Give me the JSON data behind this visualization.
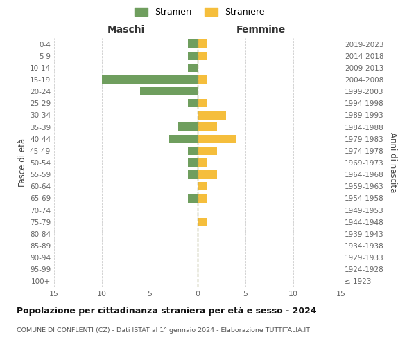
{
  "age_groups": [
    "100+",
    "95-99",
    "90-94",
    "85-89",
    "80-84",
    "75-79",
    "70-74",
    "65-69",
    "60-64",
    "55-59",
    "50-54",
    "45-49",
    "40-44",
    "35-39",
    "30-34",
    "25-29",
    "20-24",
    "15-19",
    "10-14",
    "5-9",
    "0-4"
  ],
  "birth_years": [
    "≤ 1923",
    "1924-1928",
    "1929-1933",
    "1934-1938",
    "1939-1943",
    "1944-1948",
    "1949-1953",
    "1954-1958",
    "1959-1963",
    "1964-1968",
    "1969-1973",
    "1974-1978",
    "1979-1983",
    "1984-1988",
    "1989-1993",
    "1994-1998",
    "1999-2003",
    "2004-2008",
    "2009-2013",
    "2014-2018",
    "2019-2023"
  ],
  "males": [
    0,
    0,
    0,
    0,
    0,
    0,
    0,
    1,
    0,
    1,
    1,
    1,
    3,
    2,
    0,
    1,
    6,
    10,
    1,
    1,
    1
  ],
  "females": [
    0,
    0,
    0,
    0,
    0,
    1,
    0,
    1,
    1,
    2,
    1,
    2,
    4,
    2,
    3,
    1,
    0,
    1,
    0,
    1,
    1
  ],
  "male_color": "#6f9e5e",
  "female_color": "#f5be3c",
  "title": "Popolazione per cittadinanza straniera per età e sesso - 2024",
  "subtitle": "COMUNE DI CONFLENTI (CZ) - Dati ISTAT al 1° gennaio 2024 - Elaborazione TUTTITALIA.IT",
  "legend_male": "Stranieri",
  "legend_female": "Straniere",
  "xlabel_left": "Maschi",
  "xlabel_right": "Femmine",
  "ylabel_left": "Fasce di età",
  "ylabel_right": "Anni di nascita",
  "xlim": 15,
  "background_color": "#ffffff",
  "grid_color": "#cccccc"
}
